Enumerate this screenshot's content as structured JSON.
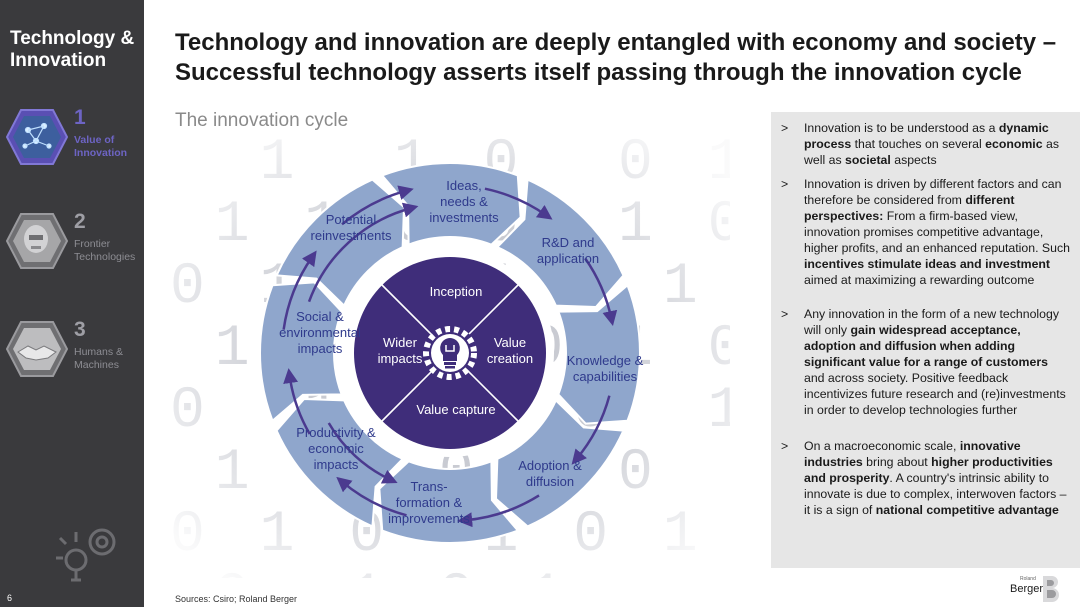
{
  "sidebar": {
    "title": "Technology & Innovation",
    "sections": [
      {
        "number": "1",
        "label": "Value of Innovation",
        "active": true
      },
      {
        "number": "2",
        "label": "Frontier Technologies",
        "active": false
      },
      {
        "number": "3",
        "label": "Humans & Machines",
        "active": false
      }
    ],
    "page_number": "6"
  },
  "slide": {
    "title": "Technology and innovation are deeply entangled with economy and society – Successful technology asserts itself passing through the innovation cycle",
    "subtitle": "The innovation cycle",
    "sources": "Sources: Csiro; Roland Berger"
  },
  "cycle": {
    "outer": [
      "Ideas, needs & investments",
      "R&D and application",
      "Knowledge & capabilities",
      "Adoption & diffusion",
      "Trans-formation & improvements",
      "Productivity & economic impacts",
      "Social & environmental impacts",
      "Potential reinvestments"
    ],
    "inner": [
      "Inception",
      "Value creation",
      "Value capture",
      "Wider impacts"
    ],
    "center_icon": "lightbulb-gear-icon"
  },
  "bullets": [
    {
      "marker": ">",
      "segments": [
        {
          "t": "Innovation is to be understood as a ",
          "b": false
        },
        {
          "t": "dynamic process",
          "b": true
        },
        {
          "t": " that touches on several ",
          "b": false
        },
        {
          "t": "economic",
          "b": true
        },
        {
          "t": " as well as ",
          "b": false
        },
        {
          "t": "societal",
          "b": true
        },
        {
          "t": " aspects",
          "b": false
        }
      ]
    },
    {
      "marker": ">",
      "segments": [
        {
          "t": "Innovation is driven by different factors and can therefore be considered from ",
          "b": false
        },
        {
          "t": "different perspectives:",
          "b": true
        },
        {
          "t": " From a firm-based view, innovation promises competitive advantage, higher profits, and an enhanced reputation. Such ",
          "b": false
        },
        {
          "t": "incentives stimulate ideas and investment",
          "b": true
        },
        {
          "t": " aimed at maximizing a rewarding outcome",
          "b": false
        }
      ]
    },
    {
      "marker": ">",
      "segments": [
        {
          "t": "Any innovation in the form of a new technology will only ",
          "b": false
        },
        {
          "t": "gain widespread acceptance, adoption and diffusion when adding significant value for a range of customers",
          "b": true
        },
        {
          "t": " and across society. Positive feedback incentivizes future research and (re)investments in order to develop technologies further",
          "b": false
        }
      ]
    },
    {
      "marker": ">",
      "segments": [
        {
          "t": "On a macroeconomic scale, ",
          "b": false
        },
        {
          "t": "innovative industries",
          "b": true
        },
        {
          "t": " bring about ",
          "b": false
        },
        {
          "t": "higher productivities and prosperity",
          "b": true
        },
        {
          "t": ". A country's intrinsic ability to innovate is due to complex, interwoven factors – it is a sign of ",
          "b": false
        },
        {
          "t": "national competitive advantage",
          "b": true
        }
      ]
    }
  ],
  "logo": {
    "small": "Roland",
    "big": "Berger"
  },
  "colors": {
    "sidebar": "#3a3a3d",
    "accent": "#6d64c4",
    "ring_outer": "#8fa6cc",
    "ring_inner": "#3f2d7a",
    "label": "#2f3a8c",
    "arrow": "#4b3a8f"
  }
}
